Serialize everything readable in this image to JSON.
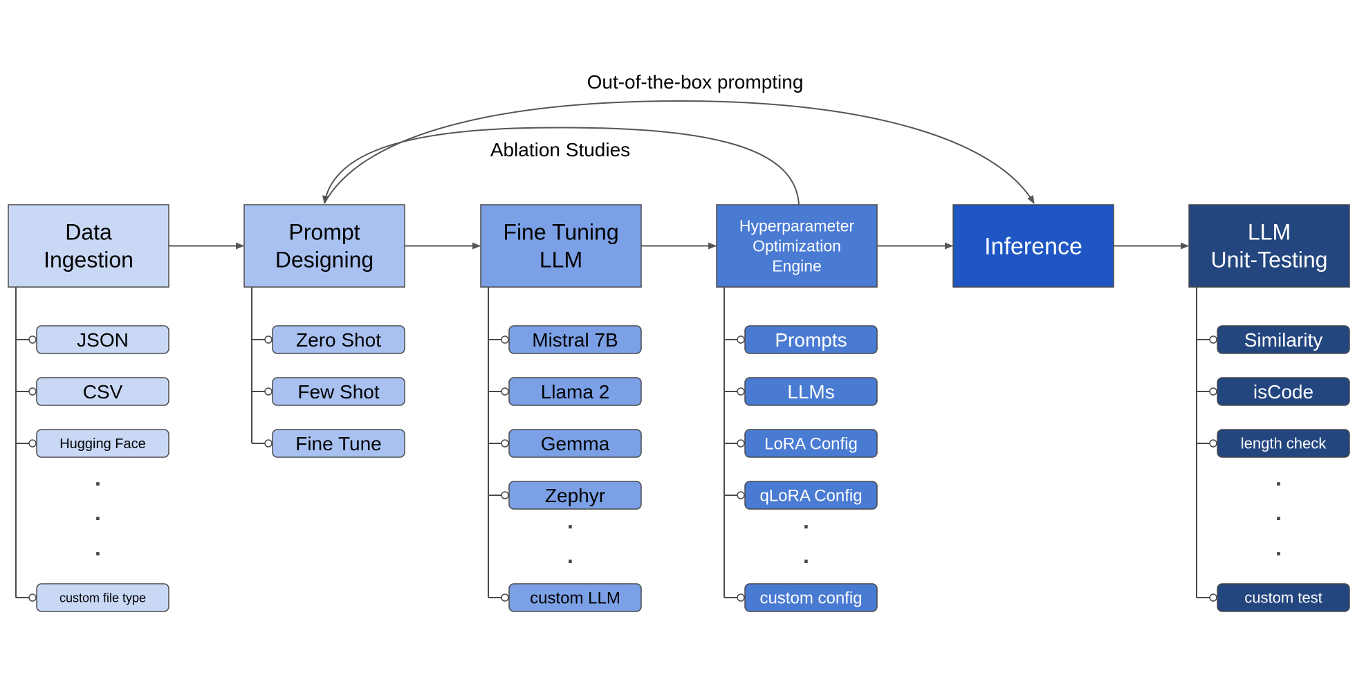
{
  "colors": {
    "c1": "#c9d8f5",
    "c2": "#a8c1f1",
    "c3": "#7ba0e6",
    "c4": "#4a7bd3",
    "c5": "#1f56c3",
    "c6": "#24467f",
    "stroke": "#4a4a4a",
    "arrow": "#555555"
  },
  "annotations": {
    "top": "Out-of-the-box prompting",
    "inner": "Ablation Studies"
  },
  "stages": [
    {
      "id": "data-ingestion",
      "lines": [
        "Data",
        "Ingestion"
      ],
      "color": "c1",
      "text_color": "#000000",
      "items": [
        "JSON",
        "CSV",
        "Hugging Face",
        "custom file type"
      ],
      "has_ellipsis": true
    },
    {
      "id": "prompt-designing",
      "lines": [
        "Prompt",
        "Designing"
      ],
      "color": "c2",
      "text_color": "#000000",
      "items": [
        "Zero Shot",
        "Few Shot",
        "Fine Tune"
      ],
      "has_ellipsis": false
    },
    {
      "id": "fine-tuning-llm",
      "lines": [
        "Fine Tuning",
        "LLM"
      ],
      "color": "c3",
      "text_color": "#000000",
      "items": [
        "Mistral 7B",
        "Llama 2",
        "Gemma",
        "Zephyr",
        "custom LLM"
      ],
      "has_ellipsis": true
    },
    {
      "id": "hyperparameter-optimization-engine",
      "lines": [
        "Hyperparameter",
        "Optimization",
        "Engine"
      ],
      "color": "c4",
      "text_color": "#ffffff",
      "items": [
        "Prompts",
        "LLMs",
        "LoRA Config",
        "qLoRA Config",
        "custom config"
      ],
      "has_ellipsis": true
    },
    {
      "id": "inference",
      "lines": [
        "Inference"
      ],
      "color": "c5",
      "text_color": "#ffffff",
      "items": [],
      "has_ellipsis": false
    },
    {
      "id": "llm-unit-testing",
      "lines": [
        "LLM",
        "Unit-Testing"
      ],
      "color": "c6",
      "text_color": "#ffffff",
      "items": [
        "Similarity",
        "isCode",
        "length check",
        "custom test"
      ],
      "has_ellipsis": true
    }
  ],
  "ellipsis_dot": "."
}
